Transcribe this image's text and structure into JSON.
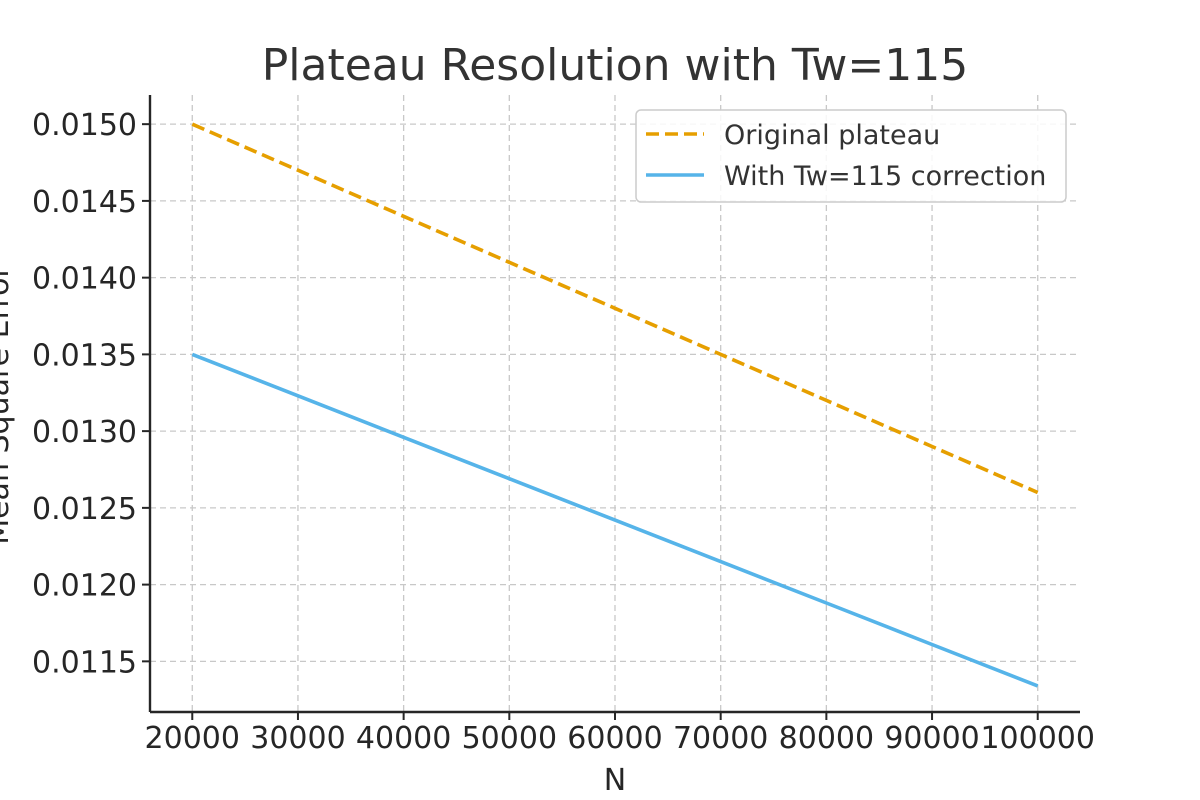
{
  "chart_data": {
    "type": "line",
    "title": "Plateau Resolution with Tw=115",
    "xlabel": "N",
    "ylabel": "Mean Square Error",
    "x": [
      20000,
      30000,
      40000,
      50000,
      60000,
      70000,
      80000,
      90000,
      100000
    ],
    "x_ticks": [
      "20000",
      "30000",
      "40000",
      "50000",
      "60000",
      "70000",
      "80000",
      "90000",
      "100000"
    ],
    "y_ticks": [
      "0.0115",
      "0.0120",
      "0.0125",
      "0.0130",
      "0.0135",
      "0.0140",
      "0.0145",
      "0.0150"
    ],
    "y_tick_values": [
      0.0115,
      0.012,
      0.0125,
      0.013,
      0.0135,
      0.014,
      0.0145,
      0.015
    ],
    "xlim": [
      16000,
      104000
    ],
    "ylim": [
      0.01117,
      0.01519
    ],
    "grid": true,
    "legend_position": "top-right",
    "series": [
      {
        "name": "Original plateau",
        "color": "#E69F00",
        "dash": true,
        "values": [
          0.015,
          0.0147,
          0.0144,
          0.0141,
          0.0138,
          0.0135,
          0.0132,
          0.0129,
          0.0126
        ]
      },
      {
        "name": "With Tw=115 correction",
        "color": "#56B4E9",
        "dash": false,
        "values": [
          0.0135,
          0.01323,
          0.01296,
          0.01269,
          0.01242,
          0.01215,
          0.01188,
          0.01161,
          0.01134
        ]
      }
    ]
  }
}
